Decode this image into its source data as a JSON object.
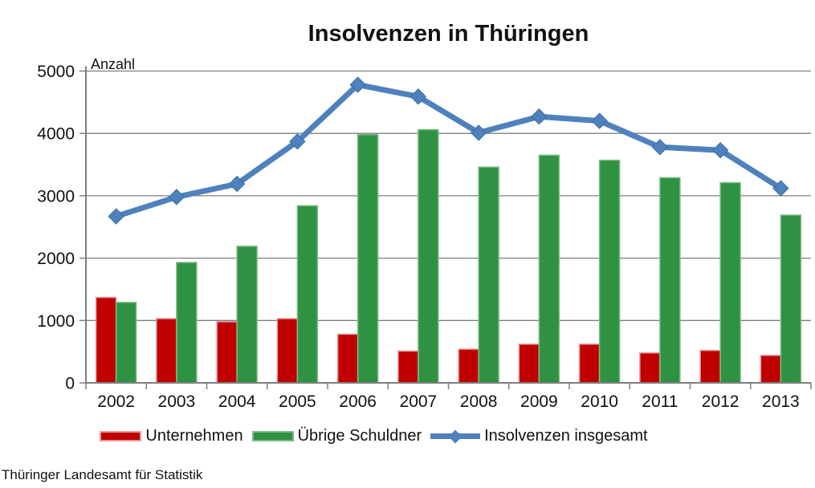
{
  "title": "Insolvenzen in Thüringen",
  "footer": "Thüringer Landesamt für Statistik",
  "chart_data": {
    "type": "bar",
    "subtype": "grouped-bars-with-line-overlay",
    "title": "Insolvenzen in Thüringen",
    "y_axis_label": "Anzahl",
    "xlabel": "",
    "ylabel": "Anzahl",
    "categories": [
      "2002",
      "2003",
      "2004",
      "2005",
      "2006",
      "2007",
      "2008",
      "2009",
      "2010",
      "2011",
      "2012",
      "2013"
    ],
    "ylim": [
      0,
      5000
    ],
    "ytick_step": 1000,
    "yticks": [
      0,
      1000,
      2000,
      3000,
      4000,
      5000
    ],
    "grid": true,
    "legend_position": "bottom",
    "axis_color": "#7f7f7f",
    "grid_color": "#7f7f7f",
    "text_color": "#111111",
    "series": [
      {
        "name": "Unternehmen",
        "type": "bar",
        "color": "#c00000",
        "border_color": "#e39b9b",
        "values": [
          1370,
          1030,
          980,
          1030,
          780,
          510,
          540,
          620,
          620,
          480,
          520,
          440
        ]
      },
      {
        "name": "Übrige Schuldner",
        "type": "bar",
        "color": "#2f9242",
        "border_color": "#7fba84",
        "values": [
          1290,
          1930,
          2190,
          2840,
          3980,
          4060,
          3460,
          3650,
          3570,
          3290,
          3210,
          2690
        ]
      },
      {
        "name": "Insolvenzen insgesamt",
        "type": "line",
        "color": "#4f81bd",
        "marker": "diamond",
        "marker_edge_color": "#3a6ea5",
        "values": [
          2670,
          2980,
          3190,
          3870,
          4780,
          4590,
          4010,
          4270,
          4200,
          3780,
          3730,
          3120
        ]
      }
    ]
  }
}
